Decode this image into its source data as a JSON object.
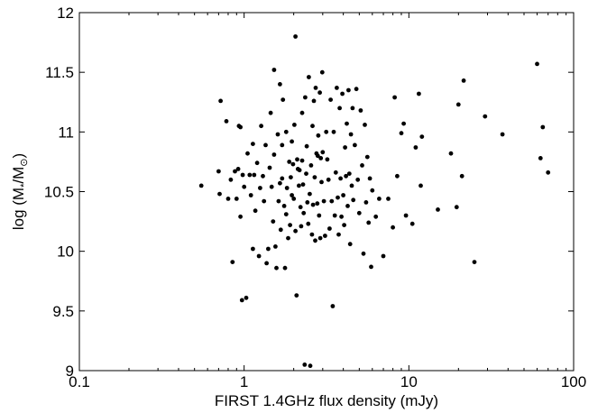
{
  "chart_data": {
    "type": "scatter",
    "title": "",
    "xlabel": "FIRST 1.4GHz flux density (mJy)",
    "ylabel_parts": {
      "pre": "log (M",
      "sub1": "*",
      "mid": "/M",
      "sub2": "⊙",
      "post": ")"
    },
    "xscale": "log",
    "xlim": [
      0.1,
      100
    ],
    "ylim": [
      9,
      12
    ],
    "xticks": [
      0.1,
      1,
      10,
      100
    ],
    "xtick_labels": [
      "0.1",
      "1",
      "10",
      "100"
    ],
    "yticks": [
      9,
      9.5,
      10,
      10.5,
      11,
      11.5,
      12
    ],
    "ytick_labels": [
      "9",
      "9.5",
      "10",
      "10.5",
      "11",
      "11.5",
      "12"
    ],
    "grid": false,
    "marker_color": "#000000",
    "points": [
      [
        0.55,
        10.55
      ],
      [
        0.72,
        11.26
      ],
      [
        0.7,
        10.67
      ],
      [
        0.71,
        10.48
      ],
      [
        0.78,
        11.09
      ],
      [
        0.8,
        10.44
      ],
      [
        0.83,
        10.6
      ],
      [
        0.85,
        9.91
      ],
      [
        0.88,
        10.67
      ],
      [
        0.9,
        10.44
      ],
      [
        0.93,
        11.05
      ],
      [
        0.95,
        11.04
      ],
      [
        0.95,
        10.29
      ],
      [
        0.92,
        10.69
      ],
      [
        0.97,
        9.59
      ],
      [
        0.98,
        10.64
      ],
      [
        1.0,
        10.54
      ],
      [
        1.03,
        9.61
      ],
      [
        1.05,
        10.82
      ],
      [
        1.08,
        10.64
      ],
      [
        1.1,
        10.47
      ],
      [
        1.13,
        10.02
      ],
      [
        1.13,
        10.9
      ],
      [
        1.15,
        10.64
      ],
      [
        1.17,
        10.34
      ],
      [
        1.2,
        10.74
      ],
      [
        1.23,
        9.96
      ],
      [
        1.25,
        10.53
      ],
      [
        1.27,
        11.05
      ],
      [
        1.3,
        10.63
      ],
      [
        1.32,
        10.42
      ],
      [
        1.35,
        10.89
      ],
      [
        1.37,
        9.9
      ],
      [
        1.4,
        10.02
      ],
      [
        1.43,
        10.7
      ],
      [
        1.45,
        11.16
      ],
      [
        1.47,
        10.54
      ],
      [
        1.5,
        10.25
      ],
      [
        1.52,
        10.81
      ],
      [
        1.52,
        11.52
      ],
      [
        1.55,
        10.04
      ],
      [
        1.57,
        9.86
      ],
      [
        1.6,
        10.98
      ],
      [
        1.62,
        10.42
      ],
      [
        1.65,
        11.4
      ],
      [
        1.65,
        10.57
      ],
      [
        1.67,
        10.18
      ],
      [
        1.7,
        10.89
      ],
      [
        1.7,
        10.61
      ],
      [
        1.72,
        11.27
      ],
      [
        1.75,
        10.38
      ],
      [
        1.77,
        9.86
      ],
      [
        1.8,
        11.0
      ],
      [
        1.8,
        10.31
      ],
      [
        1.82,
        10.53
      ],
      [
        1.85,
        10.11
      ],
      [
        1.88,
        10.75
      ],
      [
        1.9,
        10.22
      ],
      [
        1.92,
        10.62
      ],
      [
        1.95,
        10.92
      ],
      [
        1.95,
        10.47
      ],
      [
        1.98,
        10.73
      ],
      [
        2.0,
        10.44
      ],
      [
        2.02,
        11.06
      ],
      [
        2.05,
        11.8
      ],
      [
        2.05,
        10.17
      ],
      [
        2.08,
        9.63
      ],
      [
        2.1,
        10.77
      ],
      [
        2.12,
        10.69
      ],
      [
        2.15,
        10.55
      ],
      [
        2.17,
        10.68
      ],
      [
        2.2,
        10.37
      ],
      [
        2.22,
        10.21
      ],
      [
        2.25,
        11.16
      ],
      [
        2.25,
        10.76
      ],
      [
        2.28,
        10.56
      ],
      [
        2.3,
        10.32
      ],
      [
        2.33,
        9.05
      ],
      [
        2.35,
        11.29
      ],
      [
        2.38,
        10.65
      ],
      [
        2.4,
        10.88
      ],
      [
        2.42,
        10.41
      ],
      [
        2.45,
        10.23
      ],
      [
        2.47,
        11.46
      ],
      [
        2.5,
        10.48
      ],
      [
        2.52,
        9.04
      ],
      [
        2.55,
        10.72
      ],
      [
        2.58,
        10.14
      ],
      [
        2.6,
        11.05
      ],
      [
        2.62,
        10.39
      ],
      [
        2.65,
        11.26
      ],
      [
        2.68,
        10.62
      ],
      [
        2.7,
        10.09
      ],
      [
        2.72,
        11.37
      ],
      [
        2.75,
        10.82
      ],
      [
        2.78,
        10.4
      ],
      [
        2.8,
        10.8
      ],
      [
        2.82,
        10.97
      ],
      [
        2.85,
        10.3
      ],
      [
        2.88,
        11.33
      ],
      [
        2.9,
        10.11
      ],
      [
        2.92,
        10.78
      ],
      [
        2.95,
        10.58
      ],
      [
        2.98,
        11.5
      ],
      [
        3.0,
        10.83
      ],
      [
        3.05,
        10.42
      ],
      [
        3.1,
        10.13
      ],
      [
        3.15,
        11.0
      ],
      [
        3.2,
        10.77
      ],
      [
        3.25,
        10.6
      ],
      [
        3.3,
        10.19
      ],
      [
        3.35,
        11.27
      ],
      [
        3.4,
        10.42
      ],
      [
        3.45,
        9.54
      ],
      [
        3.5,
        11.0
      ],
      [
        3.55,
        10.3
      ],
      [
        3.6,
        10.66
      ],
      [
        3.65,
        11.37
      ],
      [
        3.7,
        10.45
      ],
      [
        3.75,
        10.14
      ],
      [
        3.8,
        11.2
      ],
      [
        3.85,
        10.61
      ],
      [
        3.9,
        10.29
      ],
      [
        3.95,
        11.32
      ],
      [
        4.0,
        10.47
      ],
      [
        4.05,
        10.22
      ],
      [
        4.1,
        10.87
      ],
      [
        4.15,
        10.63
      ],
      [
        4.2,
        11.07
      ],
      [
        4.25,
        10.38
      ],
      [
        4.3,
        11.35
      ],
      [
        4.35,
        10.65
      ],
      [
        4.4,
        10.06
      ],
      [
        4.45,
        10.98
      ],
      [
        4.5,
        10.55
      ],
      [
        4.55,
        11.2
      ],
      [
        4.6,
        10.43
      ],
      [
        4.7,
        10.89
      ],
      [
        4.8,
        11.36
      ],
      [
        4.9,
        10.6
      ],
      [
        5.0,
        10.32
      ],
      [
        5.1,
        11.18
      ],
      [
        5.2,
        10.72
      ],
      [
        5.3,
        9.98
      ],
      [
        5.4,
        11.06
      ],
      [
        5.5,
        10.41
      ],
      [
        5.6,
        10.79
      ],
      [
        5.7,
        10.24
      ],
      [
        5.8,
        10.61
      ],
      [
        5.9,
        9.87
      ],
      [
        6.0,
        10.51
      ],
      [
        6.3,
        10.29
      ],
      [
        6.6,
        10.44
      ],
      [
        7.0,
        9.96
      ],
      [
        7.5,
        10.44
      ],
      [
        8.0,
        10.2
      ],
      [
        8.2,
        11.29
      ],
      [
        8.5,
        10.63
      ],
      [
        9.0,
        10.99
      ],
      [
        9.3,
        11.07
      ],
      [
        9.6,
        10.3
      ],
      [
        10.5,
        10.23
      ],
      [
        11.0,
        10.87
      ],
      [
        11.5,
        11.32
      ],
      [
        12.0,
        10.96
      ],
      [
        11.8,
        10.55
      ],
      [
        15.0,
        10.35
      ],
      [
        18.0,
        10.82
      ],
      [
        19.5,
        10.37
      ],
      [
        20.0,
        11.23
      ],
      [
        21.0,
        10.63
      ],
      [
        21.5,
        11.43
      ],
      [
        25.0,
        9.91
      ],
      [
        29.0,
        11.13
      ],
      [
        37.0,
        10.98
      ],
      [
        60.0,
        11.57
      ],
      [
        63.0,
        10.78
      ],
      [
        65.0,
        11.04
      ],
      [
        70.0,
        10.66
      ]
    ]
  }
}
